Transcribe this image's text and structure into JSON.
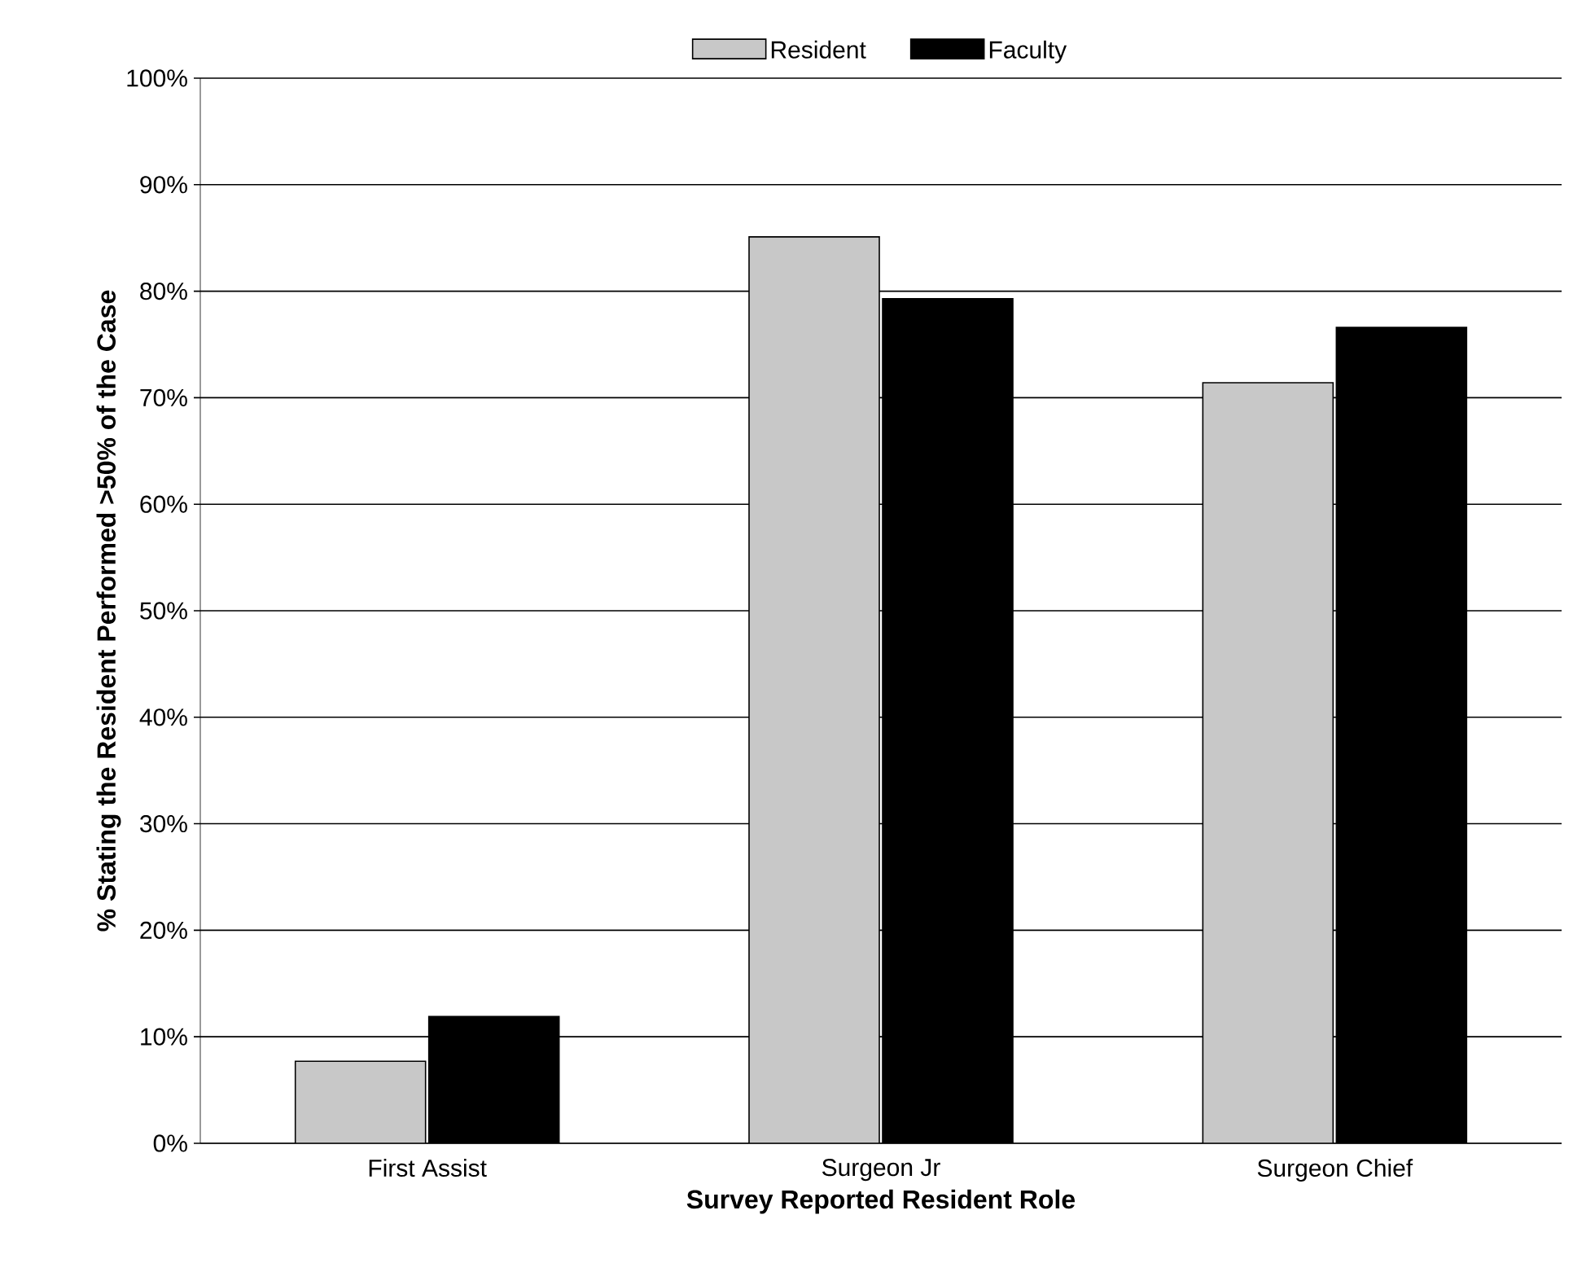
{
  "chart_data": {
    "type": "bar",
    "xlabel": "Survey Reported Resident Role",
    "ylabel": "% Stating the Resident Performed >50% of the Case",
    "categories": [
      "First Assist",
      "Surgeon Jr",
      "Surgeon Chief"
    ],
    "series": [
      {
        "name": "Resident",
        "color": "#c8c8c8",
        "values": [
          7.7,
          85.1,
          71.4
        ]
      },
      {
        "name": "Faculty",
        "color": "#000000",
        "values": [
          11.9,
          79.3,
          76.6
        ]
      }
    ],
    "ylim": [
      0,
      100
    ],
    "yticks": [
      {
        "value": 0,
        "label": "0%"
      },
      {
        "value": 10,
        "label": "10%"
      },
      {
        "value": 20,
        "label": "20%"
      },
      {
        "value": 30,
        "label": "30%"
      },
      {
        "value": 40,
        "label": "40%"
      },
      {
        "value": 50,
        "label": "50%"
      },
      {
        "value": 60,
        "label": "60%"
      },
      {
        "value": 70,
        "label": "70%"
      },
      {
        "value": 80,
        "label": "80%"
      },
      {
        "value": 90,
        "label": "90%"
      },
      {
        "value": 100,
        "label": "100%"
      }
    ],
    "grid": "y",
    "legend": "top"
  }
}
